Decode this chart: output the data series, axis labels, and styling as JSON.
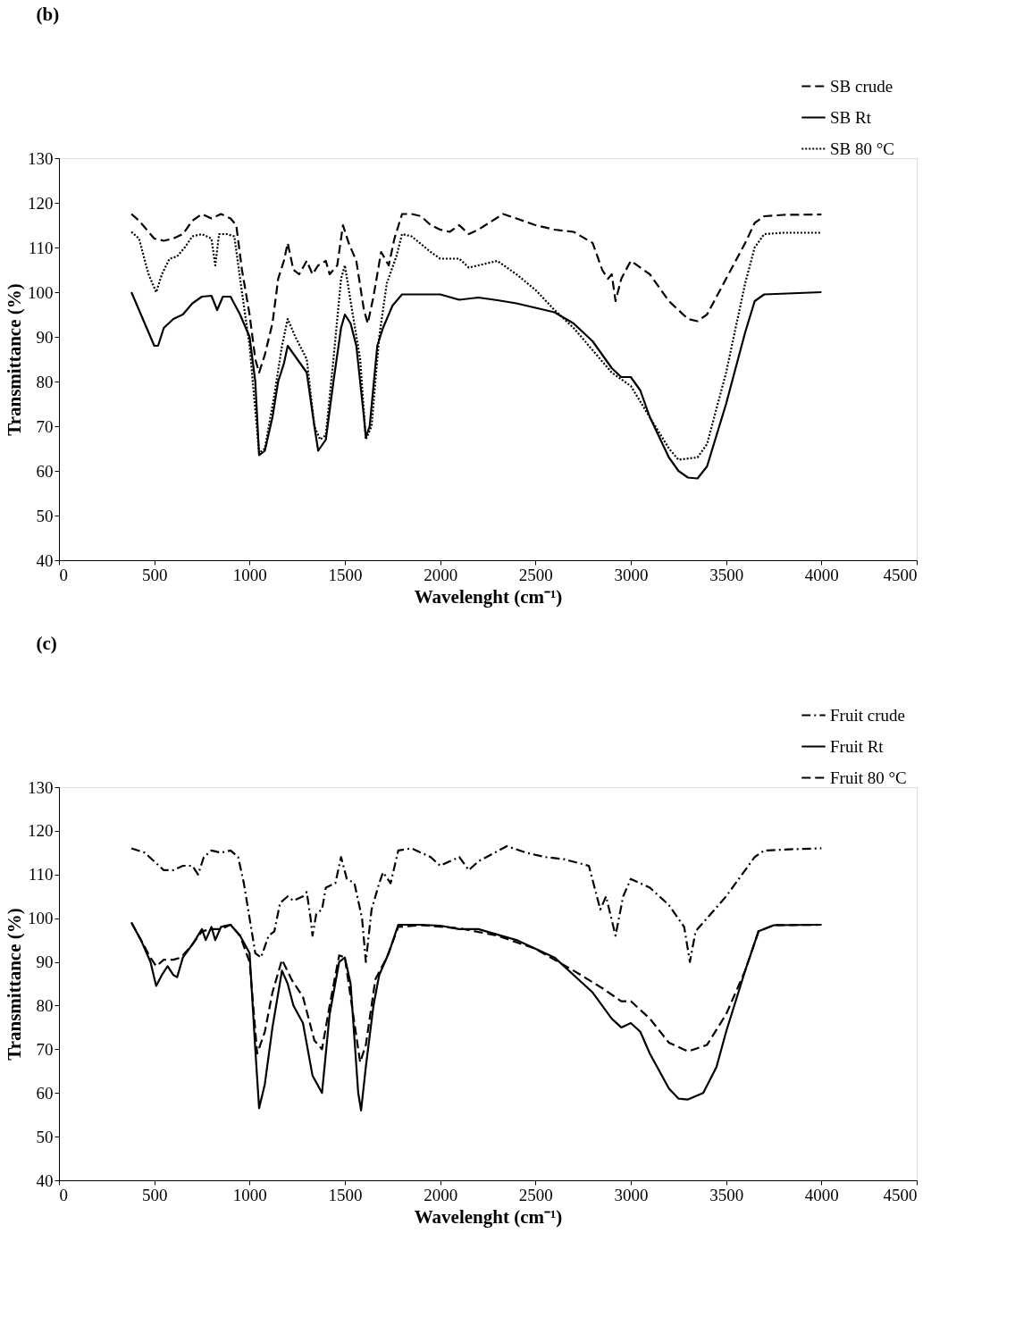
{
  "chart_data": [
    {
      "type": "line",
      "title": "(b)",
      "xlabel": "Wavelenght (cm⁻¹)",
      "ylabel": "Transmittance (%)",
      "xlim": [
        0,
        4500
      ],
      "xticks": [
        0,
        500,
        1000,
        1500,
        2000,
        2500,
        3000,
        3500,
        4000,
        4500
      ],
      "ylim": [
        40,
        130
      ],
      "yticks": [
        40,
        50,
        60,
        70,
        80,
        90,
        100,
        110,
        120,
        130
      ],
      "grid": false,
      "legend": "top right",
      "marker": "none",
      "series": [
        {
          "name": "SB crude",
          "color": "#000000",
          "line_style": "dashed",
          "x": [
            380,
            420,
            500,
            550,
            600,
            650,
            700,
            750,
            800,
            850,
            900,
            930,
            960,
            1000,
            1030,
            1050,
            1080,
            1120,
            1150,
            1180,
            1200,
            1230,
            1260,
            1300,
            1330,
            1360,
            1400,
            1420,
            1460,
            1490,
            1520,
            1560,
            1600,
            1620,
            1650,
            1690,
            1730,
            1760,
            1800,
            1850,
            1900,
            1950,
            2000,
            2050,
            2100,
            2150,
            2200,
            2330,
            2400,
            2500,
            2600,
            2700,
            2800,
            2850,
            2880,
            2900,
            2920,
            2950,
            3000,
            3100,
            3200,
            3300,
            3350,
            3400,
            3500,
            3600,
            3650,
            3700,
            3800,
            4000
          ],
          "values": [
            117.5,
            116,
            112,
            111.5,
            112,
            113,
            116,
            117.5,
            116.5,
            117.5,
            116.5,
            115,
            105,
            95,
            85,
            82,
            86,
            93,
            103,
            107,
            111,
            105,
            104,
            107,
            104,
            106,
            107,
            104,
            106,
            115,
            111,
            107,
            96,
            93,
            99,
            109,
            106,
            112,
            117.5,
            117.5,
            117,
            115,
            114,
            113.5,
            115,
            113,
            114,
            117.5,
            116.5,
            115,
            114,
            113.5,
            111,
            105,
            103,
            104,
            98,
            103,
            107,
            104,
            98,
            94,
            93.5,
            95,
            103,
            111,
            115.5,
            117,
            117.3,
            117.4
          ]
        },
        {
          "name": "SB Rt",
          "color": "#000000",
          "line_style": "solid",
          "x": [
            380,
            420,
            460,
            500,
            520,
            550,
            600,
            650,
            700,
            750,
            800,
            830,
            860,
            900,
            950,
            1000,
            1030,
            1050,
            1080,
            1120,
            1150,
            1180,
            1200,
            1250,
            1300,
            1340,
            1360,
            1400,
            1440,
            1480,
            1500,
            1530,
            1560,
            1600,
            1610,
            1630,
            1670,
            1700,
            1750,
            1800,
            2000,
            2100,
            2200,
            2300,
            2400,
            2600,
            2700,
            2800,
            2900,
            2950,
            3000,
            3050,
            3100,
            3200,
            3250,
            3300,
            3350,
            3400,
            3500,
            3600,
            3650,
            3700,
            4000
          ],
          "values": [
            100,
            96,
            92,
            88,
            88,
            92,
            94,
            95,
            97.5,
            99,
            99.2,
            96,
            99,
            99,
            95,
            90,
            80,
            63.5,
            64.5,
            72,
            80,
            84,
            88,
            85,
            82,
            70,
            64.5,
            67,
            80,
            92,
            95,
            93,
            88,
            72,
            67.5,
            70,
            88,
            92,
            97,
            99.5,
            99.5,
            98.3,
            98.8,
            98.2,
            97.5,
            95.5,
            93,
            89,
            83,
            81,
            81,
            78,
            72,
            63,
            60,
            58.5,
            58.3,
            61,
            75,
            91,
            98,
            99.5,
            100
          ]
        },
        {
          "name": "SB 80 °C",
          "color": "#000000",
          "line_style": "dotted",
          "x": [
            380,
            420,
            470,
            510,
            540,
            580,
            620,
            660,
            700,
            750,
            800,
            820,
            840,
            880,
            920,
            960,
            1000,
            1050,
            1080,
            1130,
            1170,
            1200,
            1240,
            1300,
            1340,
            1370,
            1400,
            1440,
            1480,
            1500,
            1530,
            1580,
            1610,
            1640,
            1680,
            1720,
            1770,
            1800,
            1850,
            1950,
            2000,
            2100,
            2150,
            2200,
            2300,
            2400,
            2500,
            2600,
            2700,
            2800,
            2900,
            2950,
            3000,
            3100,
            3200,
            3250,
            3350,
            3400,
            3500,
            3600,
            3650,
            3700,
            3800,
            4000
          ],
          "values": [
            113.5,
            112,
            104,
            100,
            104,
            107.5,
            108,
            110,
            112.5,
            113,
            112,
            106,
            113,
            113,
            112.5,
            100,
            88,
            64,
            65,
            77,
            88,
            94,
            90,
            85,
            70,
            67,
            68,
            85,
            103,
            106,
            98,
            85,
            67,
            70,
            90,
            102,
            108,
            113,
            112.5,
            109,
            107.5,
            107.5,
            105.5,
            106,
            107,
            104,
            100.5,
            96,
            92,
            87,
            82,
            80.5,
            79,
            72,
            65,
            62.5,
            63,
            66,
            82,
            102,
            110,
            113,
            113.3,
            113.3
          ]
        }
      ]
    },
    {
      "type": "line",
      "title": "(c)",
      "xlabel": "Wavelenght (cm⁻¹)",
      "ylabel": "Transmittance (%)",
      "xlim": [
        0,
        4500
      ],
      "xticks": [
        0,
        500,
        1000,
        1500,
        2000,
        2500,
        3000,
        3500,
        4000,
        4500
      ],
      "ylim": [
        40,
        130
      ],
      "yticks": [
        40,
        50,
        60,
        70,
        80,
        90,
        100,
        110,
        120,
        130
      ],
      "grid": false,
      "legend": "top right",
      "marker": "none",
      "series": [
        {
          "name": "Fruit crude",
          "color": "#000000",
          "line_style": "dashdot",
          "x": [
            380,
            450,
            500,
            550,
            600,
            650,
            700,
            730,
            760,
            800,
            850,
            900,
            940,
            970,
            1000,
            1030,
            1060,
            1100,
            1130,
            1160,
            1200,
            1230,
            1280,
            1300,
            1320,
            1330,
            1350,
            1380,
            1400,
            1450,
            1480,
            1510,
            1550,
            1590,
            1610,
            1640,
            1680,
            1700,
            1740,
            1780,
            1850,
            1950,
            2000,
            2050,
            2100,
            2150,
            2200,
            2350,
            2450,
            2550,
            2650,
            2780,
            2840,
            2870,
            2920,
            2960,
            3000,
            3100,
            3200,
            3280,
            3310,
            3340,
            3400,
            3500,
            3600,
            3650,
            3700,
            3850,
            4000
          ],
          "values": [
            116,
            115,
            113,
            111,
            111,
            112,
            112,
            110,
            114,
            115.5,
            115,
            115.5,
            114,
            108,
            100,
            92,
            91,
            96,
            97,
            103.5,
            105,
            104,
            105,
            106,
            100,
            96,
            101,
            102,
            107,
            108,
            114,
            109,
            108,
            100,
            90,
            102,
            108,
            110.5,
            108,
            115.5,
            116,
            114,
            112,
            113,
            114,
            111,
            113,
            116.5,
            115,
            114,
            113.5,
            112,
            102,
            105,
            96,
            105,
            109,
            107,
            103,
            98,
            90,
            97,
            100,
            105,
            111,
            114,
            115.5,
            115.8,
            116
          ]
        },
        {
          "name": "Fruit Rt",
          "color": "#000000",
          "line_style": "solid",
          "x": [
            380,
            430,
            480,
            510,
            540,
            570,
            600,
            620,
            650,
            700,
            750,
            770,
            800,
            820,
            850,
            900,
            950,
            1000,
            1030,
            1050,
            1080,
            1120,
            1170,
            1200,
            1230,
            1280,
            1330,
            1380,
            1420,
            1470,
            1500,
            1530,
            1570,
            1585,
            1610,
            1650,
            1680,
            1730,
            1780,
            1900,
            2000,
            2100,
            2200,
            2400,
            2600,
            2700,
            2800,
            2900,
            2950,
            3000,
            3050,
            3100,
            3200,
            3250,
            3300,
            3380,
            3450,
            3500,
            3600,
            3670,
            3750,
            4000
          ],
          "values": [
            99,
            95,
            90,
            84.5,
            87,
            89,
            87,
            86.5,
            91,
            94,
            97.5,
            95,
            98,
            95,
            98,
            98.5,
            96,
            92,
            70,
            56.5,
            62,
            75,
            88,
            85,
            80,
            76,
            64,
            60,
            78,
            90,
            91,
            85,
            60,
            56,
            66,
            80,
            87,
            92,
            98.5,
            98.5,
            98.3,
            97.5,
            97.5,
            95,
            91,
            87,
            83,
            77,
            75,
            76,
            74,
            69,
            61,
            58.7,
            58.5,
            60,
            66,
            74,
            88,
            97,
            98.4,
            98.5
          ]
        },
        {
          "name": "Fruit 80 °C",
          "color": "#000000",
          "line_style": "dashed",
          "x": [
            380,
            430,
            480,
            510,
            550,
            600,
            640,
            700,
            750,
            800,
            850,
            900,
            950,
            1000,
            1040,
            1080,
            1120,
            1170,
            1220,
            1280,
            1340,
            1380,
            1420,
            1470,
            1500,
            1550,
            1580,
            1610,
            1660,
            1720,
            1780,
            1900,
            2100,
            2300,
            2500,
            2700,
            2850,
            2950,
            3000,
            3100,
            3200,
            3300,
            3400,
            3500,
            3600,
            3670,
            3750,
            4000
          ],
          "values": [
            99,
            95,
            91,
            89,
            90.5,
            90.5,
            91,
            94,
            97,
            97.5,
            97.5,
            98.5,
            96,
            90,
            69,
            74,
            83,
            90.5,
            86,
            82,
            72,
            70,
            80,
            91.5,
            91,
            76,
            67,
            71,
            86,
            91,
            98,
            98.4,
            97.7,
            96,
            93,
            88,
            84,
            81,
            81,
            77,
            71.5,
            69.5,
            71,
            78,
            88,
            97,
            98.4,
            98.5
          ]
        }
      ]
    }
  ]
}
